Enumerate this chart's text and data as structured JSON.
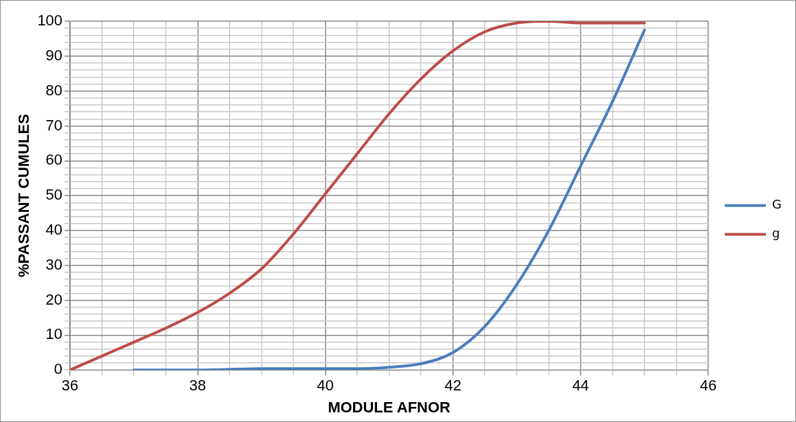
{
  "chart_data": {
    "type": "line",
    "xlabel": "MODULE AFNOR",
    "ylabel": "%PASSANT CUMULES",
    "xlim": [
      36,
      46
    ],
    "ylim": [
      0,
      100
    ],
    "xticks": [
      36,
      {
        "value": 36.5,
        "label": null
      },
      {
        "value": 37,
        "label": null
      },
      {
        "value": 37.5,
        "label": null
      },
      38,
      {
        "value": 38.5,
        "label": null
      },
      {
        "value": 39,
        "label": null
      },
      {
        "value": 39.5,
        "label": null
      },
      40,
      {
        "value": 40.5,
        "label": null
      },
      {
        "value": 41,
        "label": null
      },
      {
        "value": 41.5,
        "label": null
      },
      42,
      {
        "value": 42.5,
        "label": null
      },
      {
        "value": 43,
        "label": null
      },
      {
        "value": 43.5,
        "label": null
      },
      44,
      {
        "value": 44.5,
        "label": null
      },
      {
        "value": 45,
        "label": null
      },
      {
        "value": 45.5,
        "label": null
      },
      46
    ],
    "yticks": [
      0,
      {
        "value": 2,
        "label": null
      },
      {
        "value": 4,
        "label": null
      },
      {
        "value": 6,
        "label": null
      },
      {
        "value": 8,
        "label": null
      },
      10,
      {
        "value": 12,
        "label": null
      },
      {
        "value": 14,
        "label": null
      },
      {
        "value": 16,
        "label": null
      },
      {
        "value": 18,
        "label": null
      },
      20,
      {
        "value": 22,
        "label": null
      },
      {
        "value": 24,
        "label": null
      },
      {
        "value": 26,
        "label": null
      },
      {
        "value": 28,
        "label": null
      },
      30,
      {
        "value": 32,
        "label": null
      },
      {
        "value": 34,
        "label": null
      },
      {
        "value": 36,
        "label": null
      },
      {
        "value": 38,
        "label": null
      },
      40,
      {
        "value": 42,
        "label": null
      },
      {
        "value": 44,
        "label": null
      },
      {
        "value": 46,
        "label": null
      },
      {
        "value": 48,
        "label": null
      },
      50,
      {
        "value": 52,
        "label": null
      },
      {
        "value": 54,
        "label": null
      },
      {
        "value": 56,
        "label": null
      },
      {
        "value": 58,
        "label": null
      },
      60,
      {
        "value": 62,
        "label": null
      },
      {
        "value": 64,
        "label": null
      },
      {
        "value": 66,
        "label": null
      },
      {
        "value": 68,
        "label": null
      },
      70,
      {
        "value": 72,
        "label": null
      },
      {
        "value": 74,
        "label": null
      },
      {
        "value": 76,
        "label": null
      },
      {
        "value": 78,
        "label": null
      },
      80,
      {
        "value": 82,
        "label": null
      },
      {
        "value": 84,
        "label": null
      },
      {
        "value": 86,
        "label": null
      },
      {
        "value": 88,
        "label": null
      },
      90,
      {
        "value": 92,
        "label": null
      },
      {
        "value": 94,
        "label": null
      },
      {
        "value": 96,
        "label": null
      },
      {
        "value": 98,
        "label": null
      },
      100
    ],
    "grid": true,
    "legend": "right",
    "marker": "none",
    "line_style": "solid",
    "series": [
      {
        "name": "G",
        "color": "#4a7ebb",
        "x": [
          37,
          38,
          39,
          40,
          40.5,
          41,
          41.5,
          42,
          42.5,
          43,
          43.5,
          44,
          44.5,
          45
        ],
        "values": [
          0,
          0,
          0.4,
          0.4,
          0.4,
          0.8,
          1.8,
          5,
          12.5,
          24.5,
          40,
          58.5,
          77,
          97.5
        ]
      },
      {
        "name": "g",
        "color": "#be4b48",
        "x": [
          36,
          36.5,
          37,
          37.5,
          38,
          38.5,
          39,
          39.5,
          40,
          40.5,
          41,
          41.5,
          42,
          42.5,
          43,
          43.5,
          44,
          45
        ],
        "values": [
          0,
          4,
          8,
          12,
          16.5,
          22,
          29,
          39,
          50.5,
          62,
          73.5,
          83.5,
          91.5,
          97,
          99.5,
          100,
          99.5,
          99.5
        ]
      }
    ]
  }
}
